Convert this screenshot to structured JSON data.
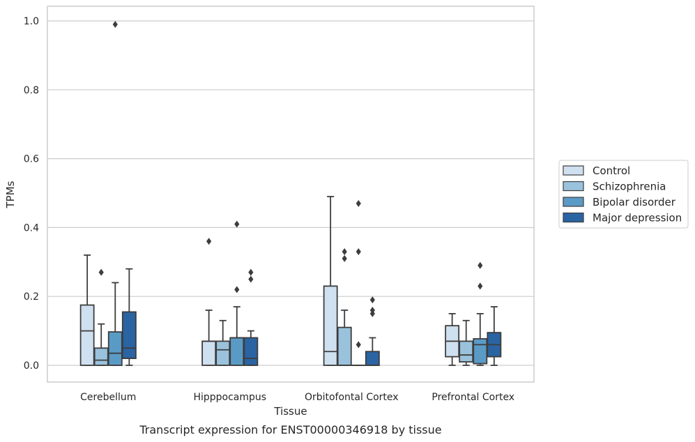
{
  "caption": "Transcript expression for ENST00000346918 by tissue",
  "chart_data": {
    "type": "box",
    "xlabel": "Tissue",
    "ylabel": "TPMs",
    "ylim": [
      -0.048,
      1.04
    ],
    "yticks": [
      "0.0",
      "0.2",
      "0.4",
      "0.6",
      "0.8",
      "1.0"
    ],
    "grid": "horizontal",
    "legend_position": "right",
    "categories": [
      "Cerebellum",
      "Hipppocampus",
      "Orbitofontal Cortex",
      "Prefrontal Cortex"
    ],
    "series": [
      {
        "name": "Control",
        "color": "#cfe0f0",
        "boxes": [
          {
            "whislo": 0.0,
            "q1": 0.0,
            "med": 0.1,
            "q3": 0.175,
            "whishi": 0.32,
            "fliers": []
          },
          {
            "whislo": 0.0,
            "q1": 0.0,
            "med": 0.07,
            "q3": 0.07,
            "whishi": 0.16,
            "fliers": [
              0.36
            ]
          },
          {
            "whislo": 0.0,
            "q1": 0.0,
            "med": 0.04,
            "q3": 0.23,
            "whishi": 0.49,
            "fliers": []
          },
          {
            "whislo": 0.0,
            "q1": 0.025,
            "med": 0.07,
            "q3": 0.115,
            "whishi": 0.15,
            "fliers": []
          }
        ]
      },
      {
        "name": "Schizophrenia",
        "color": "#9ac2dc",
        "boxes": [
          {
            "whislo": 0.0,
            "q1": 0.0,
            "med": 0.015,
            "q3": 0.05,
            "whishi": 0.12,
            "fliers": [
              0.27
            ]
          },
          {
            "whislo": 0.0,
            "q1": 0.0,
            "med": 0.045,
            "q3": 0.07,
            "whishi": 0.13,
            "fliers": []
          },
          {
            "whislo": 0.0,
            "q1": 0.0,
            "med": 0.0,
            "q3": 0.11,
            "whishi": 0.16,
            "fliers": [
              0.31,
              0.33
            ]
          },
          {
            "whislo": 0.0,
            "q1": 0.01,
            "med": 0.03,
            "q3": 0.07,
            "whishi": 0.13,
            "fliers": []
          }
        ]
      },
      {
        "name": "Bipolar disorder",
        "color": "#5a9bc6",
        "boxes": [
          {
            "whislo": 0.0,
            "q1": 0.0,
            "med": 0.035,
            "q3": 0.097,
            "whishi": 0.24,
            "fliers": [
              0.99
            ]
          },
          {
            "whislo": 0.0,
            "q1": 0.0,
            "med": 0.08,
            "q3": 0.08,
            "whishi": 0.17,
            "fliers": [
              0.22,
              0.41
            ]
          },
          {
            "whislo": 0.0,
            "q1": 0.0,
            "med": 0.0,
            "q3": 0.0,
            "whishi": 0.0,
            "fliers": [
              0.06,
              0.33,
              0.47
            ]
          },
          {
            "whislo": 0.0,
            "q1": 0.005,
            "med": 0.06,
            "q3": 0.077,
            "whishi": 0.15,
            "fliers": [
              0.23,
              0.29
            ]
          }
        ]
      },
      {
        "name": "Major depression",
        "color": "#2a64a2",
        "boxes": [
          {
            "whislo": 0.0,
            "q1": 0.02,
            "med": 0.05,
            "q3": 0.155,
            "whishi": 0.28,
            "fliers": []
          },
          {
            "whislo": 0.0,
            "q1": 0.0,
            "med": 0.02,
            "q3": 0.08,
            "whishi": 0.1,
            "fliers": [
              0.25,
              0.27
            ]
          },
          {
            "whislo": 0.0,
            "q1": 0.0,
            "med": 0.0,
            "q3": 0.04,
            "whishi": 0.08,
            "fliers": [
              0.15,
              0.16,
              0.19
            ]
          },
          {
            "whislo": 0.0,
            "q1": 0.025,
            "med": 0.06,
            "q3": 0.095,
            "whishi": 0.17,
            "fliers": []
          }
        ]
      }
    ]
  }
}
